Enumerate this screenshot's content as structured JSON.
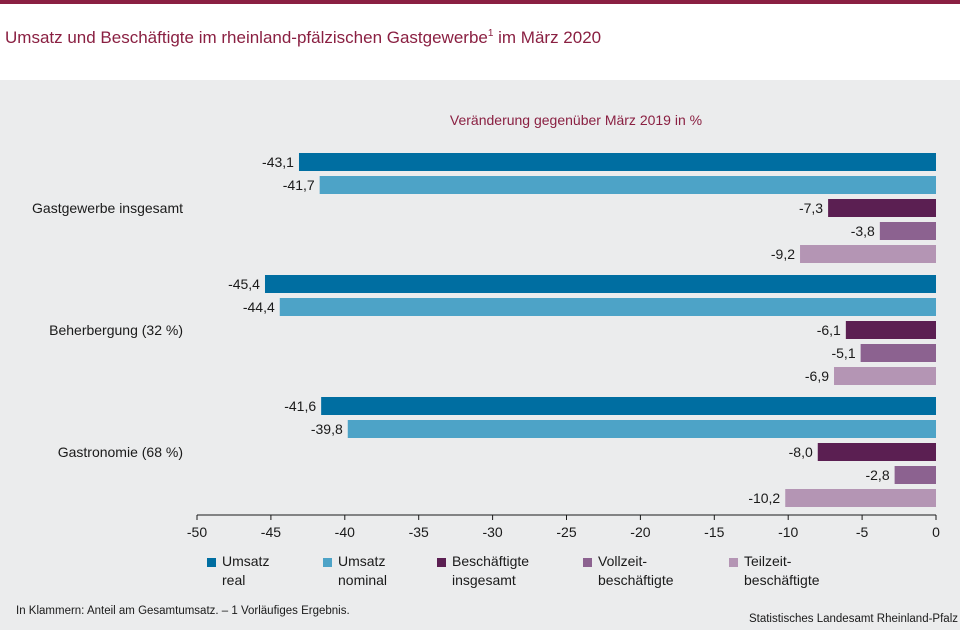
{
  "header": {
    "title": "Umsatz und Beschäftigte im rheinland-pfälzischen Gastgewerbe",
    "title_sup": "1",
    "title_tail": " im März 2020"
  },
  "footer": {
    "footnote": "In Klammern: Anteil am Gesamtumsatz. – 1 Vorläufiges Ergebnis.",
    "source": "Statistisches Landesamt Rheinland-Pfalz"
  },
  "chart_data": {
    "type": "bar",
    "orientation": "horizontal",
    "subtitle": "Veränderung gegenüber März 2019 in %",
    "categories": [
      "Gastgewerbe insgesamt",
      "Beherbergung (32 %)",
      "Gastronomie (68 %)"
    ],
    "series": [
      {
        "name": "Umsatz\nreal",
        "color": "#006ea1",
        "values": [
          -43.1,
          -45.4,
          -41.6
        ],
        "labels": [
          "-43,1",
          "-45,4",
          "-41,6"
        ]
      },
      {
        "name": "Umsatz\nnominal",
        "color": "#4da3c7",
        "values": [
          -41.7,
          -44.4,
          -39.8
        ],
        "labels": [
          "-41,7",
          "-44,4",
          "-39,8"
        ]
      },
      {
        "name": "Beschäftigte\ninsgesamt",
        "color": "#5b1f52",
        "values": [
          -7.3,
          -6.1,
          -8.0
        ],
        "labels": [
          "-7,3",
          "-6,1",
          "-8,0"
        ]
      },
      {
        "name": "Vollzeit-\nbeschäftigte",
        "color": "#8c6290",
        "values": [
          -3.8,
          -5.1,
          -2.8
        ],
        "labels": [
          "-3,8",
          "-5,1",
          "-2,8"
        ]
      },
      {
        "name": "Teilzeit-\nbeschäftigte",
        "color": "#b495b4",
        "values": [
          -9.2,
          -6.9,
          -10.2
        ],
        "labels": [
          "-9,2",
          "-6,9",
          "-10,2"
        ]
      }
    ],
    "xlim": [
      -50,
      0
    ],
    "xticks": [
      -50,
      -45,
      -40,
      -35,
      -30,
      -25,
      -20,
      -15,
      -10,
      -5,
      0
    ],
    "xtick_labels": [
      "-50",
      "-45",
      "-40",
      "-35",
      "-30",
      "-25",
      "-20",
      "-15",
      "-10",
      "-5",
      "0"
    ],
    "grid": false,
    "legend": "bottom"
  }
}
